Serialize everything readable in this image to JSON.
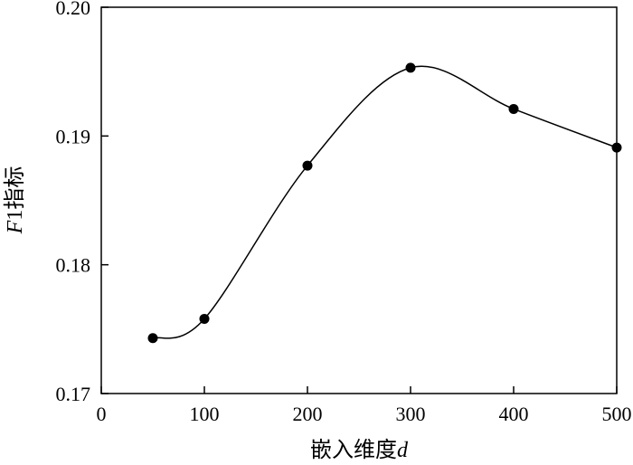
{
  "chart_data": {
    "type": "line",
    "xlabel": {
      "prefix": "嵌入维度",
      "variable": "d"
    },
    "ylabel": {
      "variable": "F",
      "suffix": "1指标"
    },
    "xlim": [
      0,
      500
    ],
    "ylim": [
      0.17,
      0.2
    ],
    "xticks": [
      "0",
      "100",
      "200",
      "300",
      "400",
      "500"
    ],
    "yticks": [
      "0.17",
      "0.18",
      "0.19",
      "0.20"
    ],
    "grid": false,
    "series": [
      {
        "x": [
          50,
          100,
          200,
          300,
          400,
          500
        ],
        "y": [
          0.1743,
          0.1758,
          0.1877,
          0.1953,
          0.1921,
          0.1891
        ],
        "smooth": true,
        "marker": "filled-circle",
        "color": "#000000"
      }
    ]
  }
}
